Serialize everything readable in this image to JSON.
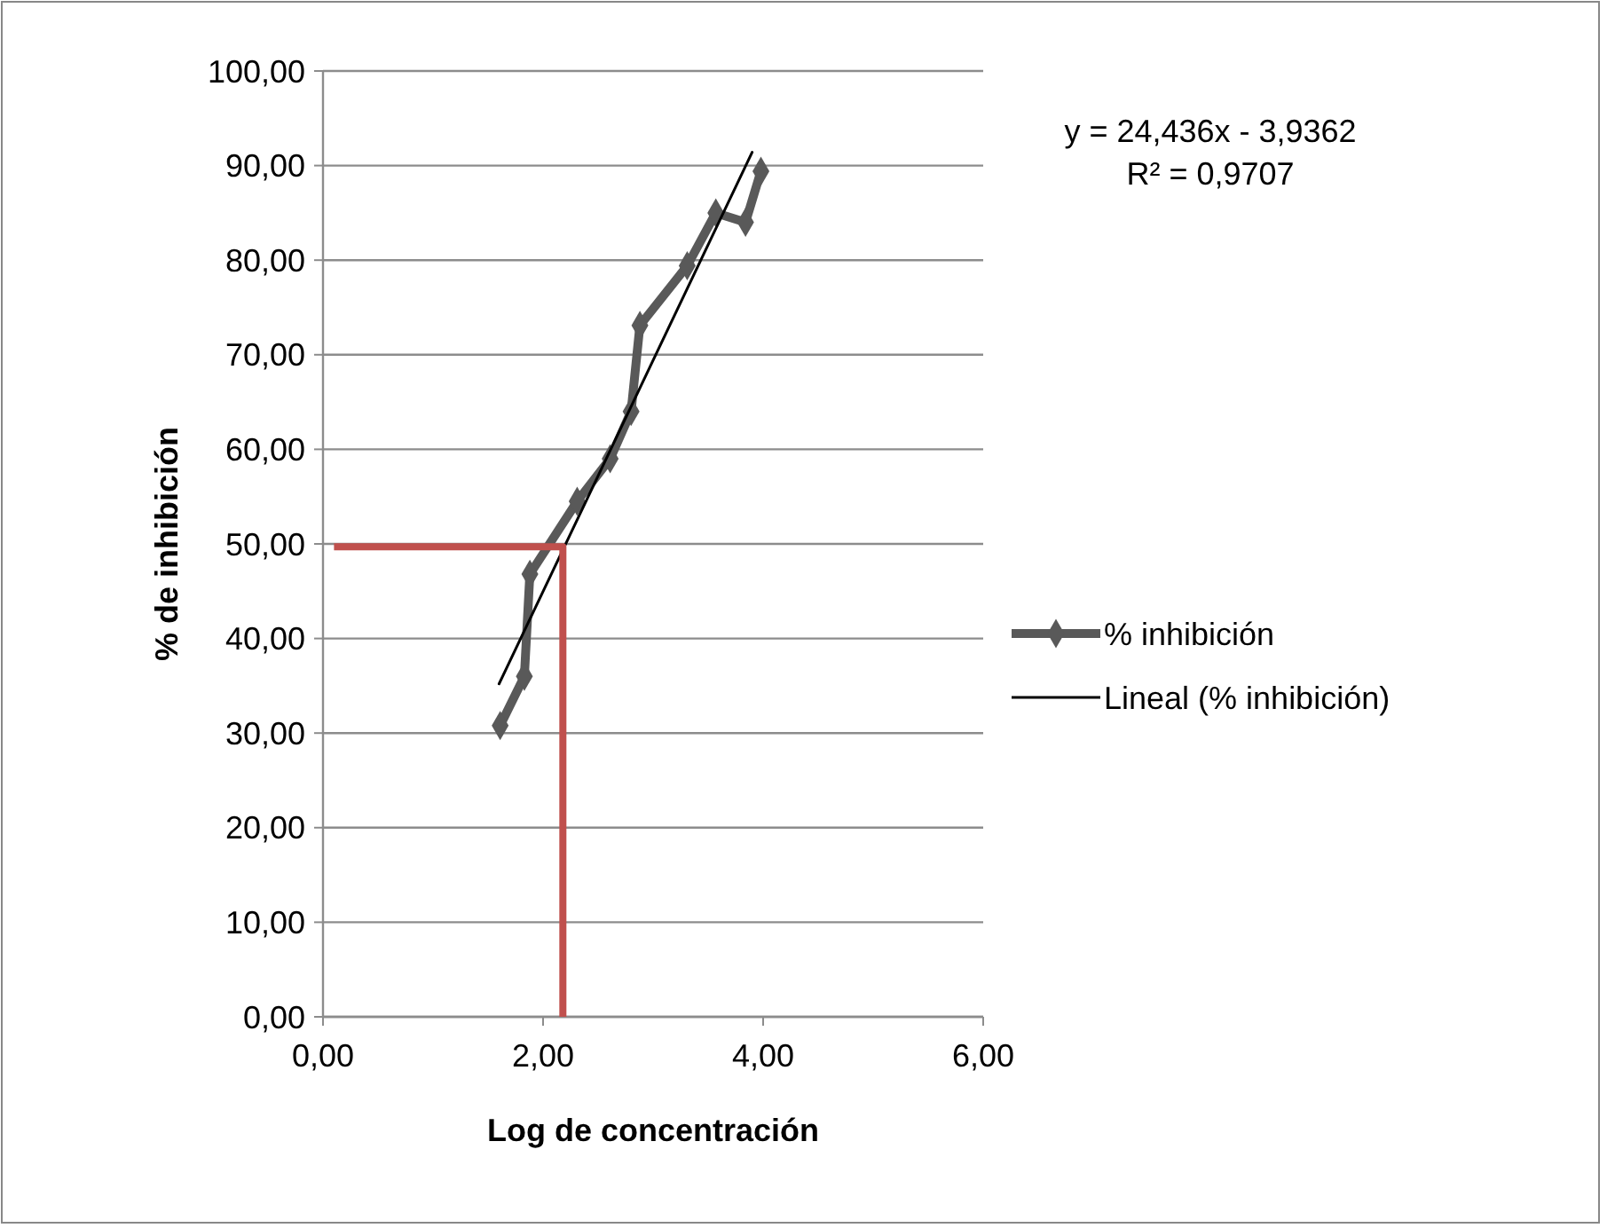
{
  "chart_data": {
    "type": "line",
    "xlabel": "Log de concentración",
    "ylabel": "% de inhibición",
    "xlim": [
      0,
      6
    ],
    "xticks": [
      {
        "value": 0,
        "label": "0,00"
      },
      {
        "value": 2,
        "label": "2,00"
      },
      {
        "value": 4,
        "label": "4,00"
      },
      {
        "value": 6,
        "label": "6,00"
      }
    ],
    "ylim": [
      0,
      100
    ],
    "yticks": [
      {
        "value": 0,
        "label": "0,00"
      },
      {
        "value": 10,
        "label": "10,00"
      },
      {
        "value": 20,
        "label": "20,00"
      },
      {
        "value": 30,
        "label": "30,00"
      },
      {
        "value": 40,
        "label": "40,00"
      },
      {
        "value": 50,
        "label": "50,00"
      },
      {
        "value": 60,
        "label": "60,00"
      },
      {
        "value": 70,
        "label": "70,00"
      },
      {
        "value": 80,
        "label": "80,00"
      },
      {
        "value": 90,
        "label": "90,00"
      },
      {
        "value": 100,
        "label": "100,00"
      }
    ],
    "grid": "y",
    "legend": "right",
    "series": [
      {
        "name": "% inhibición",
        "color": "#595959",
        "marker": "diamond",
        "x": [
          1.61,
          1.83,
          1.88,
          2.31,
          2.61,
          2.8,
          2.88,
          3.31,
          3.57,
          3.84,
          3.98
        ],
        "values": [
          30.8,
          36,
          46.8,
          54.5,
          59,
          64,
          73.1,
          79.4,
          85,
          84,
          89.4
        ]
      },
      {
        "name": "Lineal (% inhibición)",
        "color": "#000000",
        "marker": "none",
        "x": [
          1.6,
          3.9
        ],
        "values": [
          35.2,
          91.4
        ]
      },
      {
        "color": "#c0504d",
        "marker": "none",
        "x": [
          0.1,
          2.18,
          2.18
        ],
        "values": [
          49.7,
          49.7,
          0
        ]
      }
    ],
    "annotations": [
      "y = 24,436x - 3,9362",
      "R² = 0,9707"
    ]
  }
}
